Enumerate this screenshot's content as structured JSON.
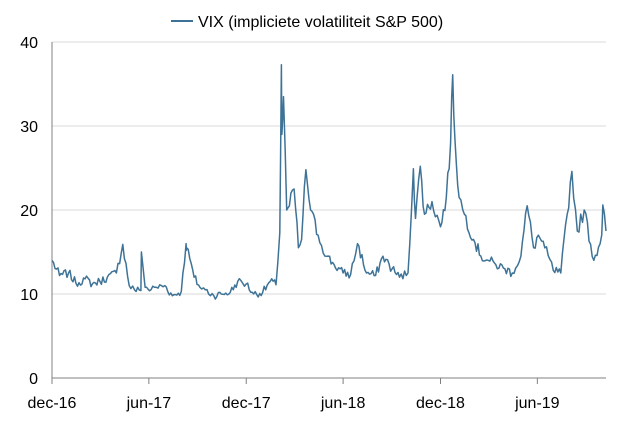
{
  "chart_data": {
    "type": "line",
    "title": "",
    "xlabel": "",
    "ylabel": "",
    "ylim": [
      0,
      40
    ],
    "yticks": [
      0,
      10,
      20,
      30,
      40
    ],
    "xticks": [
      "dec-16",
      "jun-17",
      "dec-17",
      "jun-18",
      "dec-18",
      "jun-19"
    ],
    "grid": "horizontal",
    "legend_position": "top",
    "series": [
      {
        "name": "VIX (impliciete volatiliteit S&P 500)",
        "color": "#3e7397",
        "x": [
          "2016-12-01",
          "2016-12-15",
          "2017-01-01",
          "2017-01-15",
          "2017-02-01",
          "2017-02-15",
          "2017-03-01",
          "2017-03-15",
          "2017-04-01",
          "2017-04-13",
          "2017-04-25",
          "2017-05-05",
          "2017-05-17",
          "2017-05-18",
          "2017-05-25",
          "2017-06-05",
          "2017-06-15",
          "2017-07-01",
          "2017-07-15",
          "2017-08-01",
          "2017-08-10",
          "2017-08-11",
          "2017-08-17",
          "2017-08-25",
          "2017-09-05",
          "2017-09-15",
          "2017-10-01",
          "2017-10-15",
          "2017-11-01",
          "2017-11-15",
          "2017-12-01",
          "2017-12-15",
          "2018-01-01",
          "2018-01-15",
          "2018-01-26",
          "2018-02-02",
          "2018-02-05",
          "2018-02-06",
          "2018-02-09",
          "2018-02-15",
          "2018-02-20",
          "2018-03-01",
          "2018-03-09",
          "2018-03-15",
          "2018-03-23",
          "2018-04-01",
          "2018-04-15",
          "2018-05-01",
          "2018-05-15",
          "2018-06-01",
          "2018-06-15",
          "2018-06-28",
          "2018-07-15",
          "2018-08-01",
          "2018-08-15",
          "2018-09-01",
          "2018-09-15",
          "2018-10-01",
          "2018-10-11",
          "2018-10-15",
          "2018-10-24",
          "2018-11-01",
          "2018-11-15",
          "2018-12-01",
          "2018-12-12",
          "2018-12-20",
          "2018-12-24",
          "2018-12-28",
          "2019-01-05",
          "2019-01-15",
          "2019-02-01",
          "2019-02-15",
          "2019-03-01",
          "2019-03-15",
          "2019-04-01",
          "2019-04-15",
          "2019-05-01",
          "2019-05-13",
          "2019-05-25",
          "2019-06-03",
          "2019-06-15",
          "2019-07-01",
          "2019-07-15",
          "2019-08-05",
          "2019-08-15",
          "2019-08-28",
          "2019-09-15",
          "2019-09-30",
          "2019-10-02",
          "2019-10-08"
        ],
        "values": [
          14.0,
          12.2,
          12.5,
          11.3,
          11.8,
          11.2,
          11.5,
          12.0,
          12.5,
          15.9,
          11.0,
          10.5,
          10.4,
          15.0,
          10.8,
          10.5,
          10.8,
          11.0,
          9.8,
          10.3,
          16.0,
          15.5,
          14.2,
          12.0,
          10.8,
          10.5,
          9.8,
          10.0,
          10.2,
          11.5,
          11.2,
          10.0,
          10.2,
          11.5,
          11.1,
          17.3,
          37.3,
          29.0,
          33.5,
          20.0,
          20.5,
          22.5,
          15.5,
          16.5,
          24.8,
          20.0,
          17.0,
          14.5,
          13.5,
          12.5,
          12.3,
          16.0,
          12.5,
          12.2,
          14.5,
          13.0,
          12.0,
          12.5,
          24.9,
          19.0,
          25.2,
          19.5,
          21.0,
          18.0,
          21.5,
          28.0,
          36.1,
          28.5,
          21.5,
          19.5,
          16.5,
          14.5,
          14.0,
          13.5,
          13.0,
          12.5,
          14.5,
          20.5,
          15.5,
          17.0,
          15.5,
          12.8,
          12.5,
          24.6,
          17.5,
          20.0,
          14.0,
          17.0,
          20.6,
          17.5
        ]
      }
    ]
  }
}
